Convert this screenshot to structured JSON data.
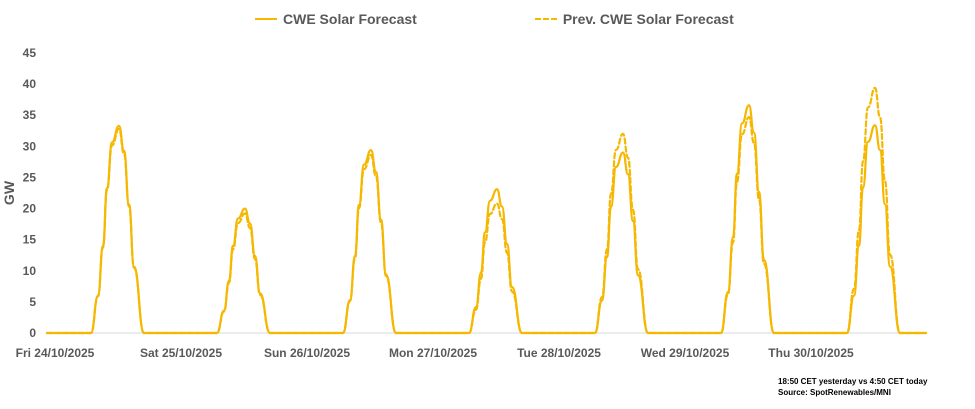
{
  "chart_data": {
    "type": "line",
    "title": "",
    "xlabel": "",
    "ylabel": "GW",
    "ylim": [
      0,
      45
    ],
    "yticks": [
      0,
      5,
      10,
      15,
      20,
      25,
      30,
      35,
      40,
      45
    ],
    "grid": false,
    "legend_position": "top",
    "x_categories": [
      "Fri 24/10/2025",
      "Sat 25/10/2025",
      "Sun 26/10/2025",
      "Mon 27/10/2025",
      "Tue 28/10/2025",
      "Wed 29/10/2025",
      "Thu 30/10/2025"
    ],
    "series": [
      {
        "name": "CWE Solar Forecast",
        "style": "solid",
        "color": "#f5b700",
        "daily_peaks_gw": [
          33.3,
          20.0,
          29.4,
          23.1,
          29.0,
          36.6,
          33.4
        ]
      },
      {
        "name": "Prev. CWE Solar Forecast",
        "style": "dashed",
        "color": "#f5b700",
        "daily_peaks_gw": [
          32.8,
          19.2,
          28.6,
          20.8,
          32.0,
          34.7,
          39.4
        ]
      }
    ]
  },
  "legend": {
    "series_1": "CWE Solar Forecast",
    "series_2": "Prev. CWE Solar Forecast"
  },
  "footer": {
    "line_1": "18:50 CET yesterday vs  4:50 CET today",
    "line_2": "Source: SpotRenewables/MNI"
  }
}
